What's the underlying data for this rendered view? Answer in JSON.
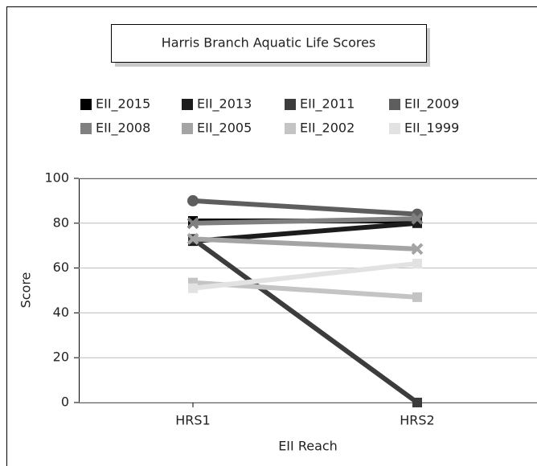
{
  "chart_data": {
    "type": "line",
    "title": "Harris Branch Aquatic Life Scores",
    "x_label": "EII Reach",
    "y_label": "Score",
    "categories": [
      "HRS1",
      "HRS2"
    ],
    "ylim": [
      0,
      100
    ],
    "yticks": [
      0,
      20,
      40,
      60,
      80,
      100
    ],
    "grid": true,
    "legend": "top",
    "series": [
      {
        "name": "EII_2015",
        "color": "#000000",
        "marker": "square",
        "values": [
          81,
          81
        ]
      },
      {
        "name": "EII_2013",
        "color": "#1c1c1c",
        "marker": "square",
        "values": [
          72,
          80
        ]
      },
      {
        "name": "EII_2011",
        "color": "#3c3c3c",
        "marker": "square",
        "values": [
          73,
          0
        ]
      },
      {
        "name": "EII_2009",
        "color": "#5e5e5e",
        "marker": "circle",
        "values": [
          90,
          84
        ]
      },
      {
        "name": "EII_2008",
        "color": "#808080",
        "marker": "x",
        "values": [
          80,
          82
        ]
      },
      {
        "name": "EII_2005",
        "color": "#a4a4a4",
        "marker": "x",
        "values": [
          73,
          68.5
        ]
      },
      {
        "name": "EII_2002",
        "color": "#c4c4c4",
        "marker": "square",
        "values": [
          53.5,
          47
        ]
      },
      {
        "name": "EII_1999",
        "color": "#e2e2e2",
        "marker": "square",
        "values": [
          51,
          62
        ]
      }
    ]
  }
}
